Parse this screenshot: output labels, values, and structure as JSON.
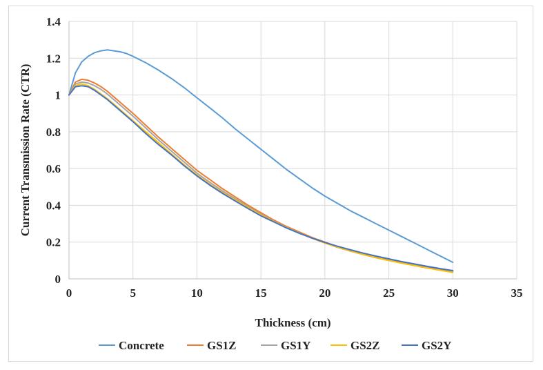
{
  "chart_data": {
    "type": "line",
    "title": "",
    "xlabel": "Thickness (cm)",
    "ylabel": "Current Transmission Rate (CTR)",
    "xlim": [
      0,
      35
    ],
    "ylim": [
      0,
      1.4
    ],
    "xticks": [
      0,
      5,
      10,
      15,
      20,
      25,
      30,
      35
    ],
    "yticks": [
      0,
      0.2,
      0.4,
      0.6,
      0.8,
      1,
      1.2,
      1.4
    ],
    "grid": true,
    "legend_position": "bottom",
    "series": [
      {
        "name": "Concrete",
        "color": "#5b9bd5",
        "x": [
          0,
          0.5,
          1,
          1.5,
          2,
          2.5,
          3,
          3.5,
          4,
          4.5,
          5,
          6,
          7,
          8,
          9,
          10,
          11,
          12,
          13,
          14,
          15,
          16,
          17,
          18,
          19,
          20,
          21,
          22,
          23,
          24,
          25,
          26,
          27,
          28,
          29,
          30
        ],
        "y": [
          1.0,
          1.12,
          1.18,
          1.21,
          1.23,
          1.24,
          1.245,
          1.24,
          1.235,
          1.225,
          1.21,
          1.175,
          1.135,
          1.09,
          1.04,
          0.985,
          0.93,
          0.875,
          0.815,
          0.76,
          0.705,
          0.65,
          0.595,
          0.545,
          0.495,
          0.45,
          0.41,
          0.37,
          0.335,
          0.3,
          0.265,
          0.23,
          0.195,
          0.16,
          0.125,
          0.09
        ]
      },
      {
        "name": "GS1Z",
        "color": "#ed7d31",
        "x": [
          0,
          0.5,
          1,
          1.5,
          2,
          2.5,
          3,
          4,
          5,
          6,
          7,
          8,
          9,
          10,
          11,
          12,
          13,
          14,
          15,
          16,
          17,
          18,
          19,
          20,
          21,
          22,
          23,
          24,
          25,
          26,
          27,
          28,
          29,
          30
        ],
        "y": [
          1.0,
          1.07,
          1.085,
          1.08,
          1.065,
          1.045,
          1.02,
          0.96,
          0.9,
          0.835,
          0.77,
          0.71,
          0.65,
          0.59,
          0.54,
          0.49,
          0.445,
          0.4,
          0.36,
          0.32,
          0.285,
          0.255,
          0.225,
          0.2,
          0.175,
          0.155,
          0.135,
          0.118,
          0.102,
          0.088,
          0.074,
          0.061,
          0.049,
          0.038
        ]
      },
      {
        "name": "GS1Y",
        "color": "#a5a5a5",
        "x": [
          0,
          0.5,
          1,
          1.5,
          2,
          2.5,
          3,
          4,
          5,
          6,
          7,
          8,
          9,
          10,
          11,
          12,
          13,
          14,
          15,
          16,
          17,
          18,
          19,
          20,
          21,
          22,
          23,
          24,
          25,
          26,
          27,
          28,
          29,
          30
        ],
        "y": [
          1.0,
          1.06,
          1.07,
          1.065,
          1.05,
          1.03,
          1.005,
          0.945,
          0.885,
          0.82,
          0.755,
          0.695,
          0.635,
          0.575,
          0.525,
          0.478,
          0.435,
          0.392,
          0.352,
          0.314,
          0.28,
          0.25,
          0.221,
          0.195,
          0.171,
          0.151,
          0.132,
          0.115,
          0.1,
          0.086,
          0.073,
          0.06,
          0.048,
          0.037
        ]
      },
      {
        "name": "GS2Z",
        "color": "#ffc000",
        "x": [
          0,
          0.5,
          1,
          1.5,
          2,
          2.5,
          3,
          4,
          5,
          6,
          7,
          8,
          9,
          10,
          11,
          12,
          13,
          14,
          15,
          16,
          17,
          18,
          19,
          20,
          21,
          22,
          23,
          24,
          25,
          26,
          27,
          28,
          29,
          30
        ],
        "y": [
          1.0,
          1.05,
          1.06,
          1.05,
          1.03,
          1.005,
          0.98,
          0.92,
          0.86,
          0.8,
          0.74,
          0.68,
          0.62,
          0.565,
          0.515,
          0.47,
          0.428,
          0.387,
          0.348,
          0.312,
          0.279,
          0.249,
          0.221,
          0.195,
          0.172,
          0.152,
          0.133,
          0.116,
          0.1,
          0.086,
          0.072,
          0.059,
          0.047,
          0.035
        ]
      },
      {
        "name": "GS2Y",
        "color": "#4472c4",
        "x": [
          0,
          0.5,
          1,
          1.5,
          2,
          2.5,
          3,
          4,
          5,
          6,
          7,
          8,
          9,
          10,
          11,
          12,
          13,
          14,
          15,
          16,
          17,
          18,
          19,
          20,
          21,
          22,
          23,
          24,
          25,
          26,
          27,
          28,
          29,
          30
        ],
        "y": [
          1.0,
          1.045,
          1.05,
          1.045,
          1.025,
          1.0,
          0.975,
          0.915,
          0.855,
          0.79,
          0.73,
          0.675,
          0.615,
          0.56,
          0.51,
          0.465,
          0.423,
          0.382,
          0.343,
          0.31,
          0.277,
          0.248,
          0.222,
          0.198,
          0.177,
          0.158,
          0.14,
          0.124,
          0.109,
          0.094,
          0.081,
          0.068,
          0.056,
          0.045
        ]
      }
    ]
  }
}
